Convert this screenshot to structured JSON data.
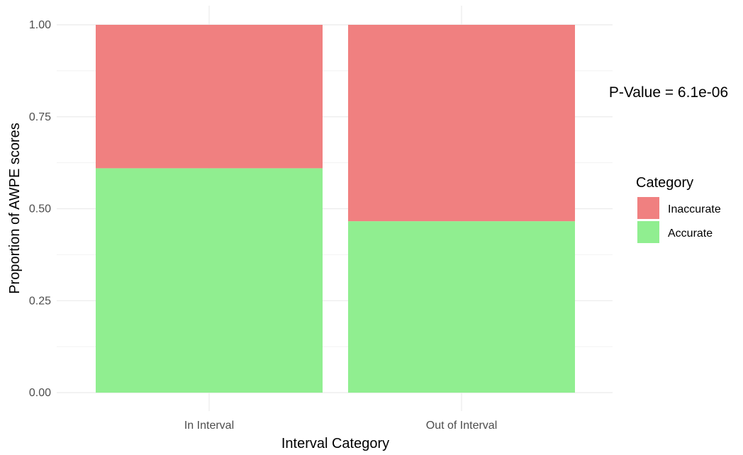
{
  "chart_data": {
    "type": "bar",
    "stacked": true,
    "categories": [
      "In Interval",
      "Out of Interval"
    ],
    "series": [
      {
        "name": "Accurate",
        "values": [
          0.61,
          0.466
        ],
        "color": "#90EE90"
      },
      {
        "name": "Inaccurate",
        "values": [
          0.39,
          0.534
        ],
        "color": "#F08080"
      }
    ],
    "legend_order": [
      "Inaccurate",
      "Accurate"
    ],
    "title": "",
    "xlabel": "Interval Category",
    "ylabel": "Proportion of AWPE scores",
    "ylim": [
      0,
      1
    ],
    "yticks": [
      "0.00",
      "0.25",
      "0.50",
      "0.75",
      "1.00"
    ],
    "ytick_values": [
      0,
      0.25,
      0.5,
      0.75,
      1.0
    ],
    "grid": true,
    "legend_title": "Category",
    "legend_position": "right",
    "annotation": "P-Value = 6.1e-06"
  }
}
